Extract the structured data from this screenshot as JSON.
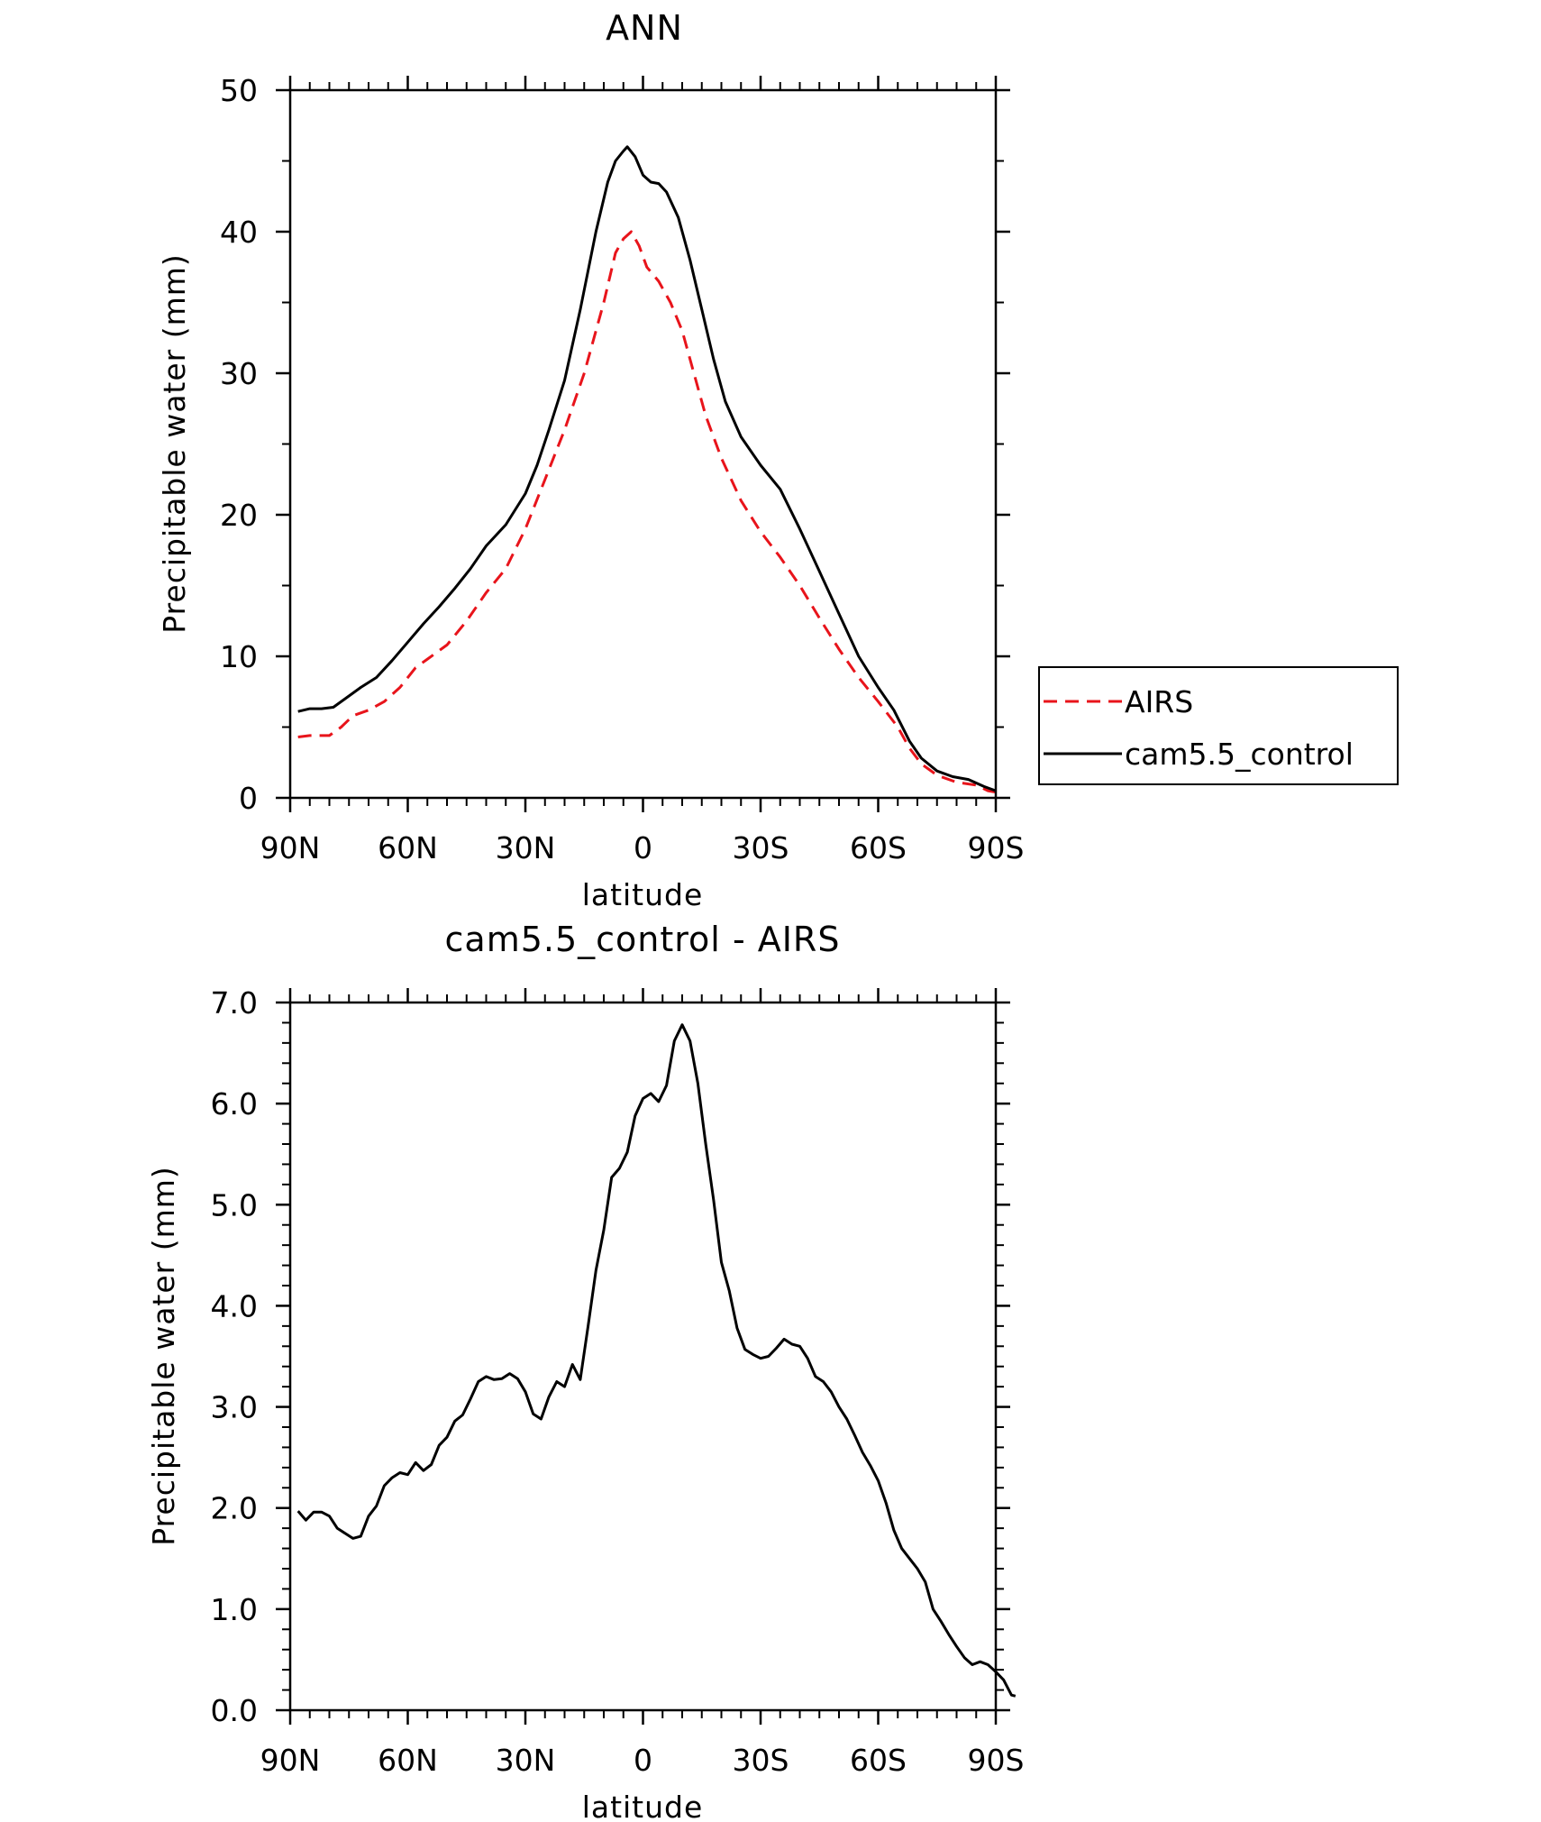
{
  "chart_data": [
    {
      "type": "line",
      "title": "ANN",
      "xlabel": "latitude",
      "ylabel": "Precipitable water (mm)",
      "xlim": [
        90,
        -90
      ],
      "ylim": [
        0,
        50
      ],
      "x_tick_values": [
        90,
        60,
        30,
        0,
        -30,
        -60,
        -90
      ],
      "x_tick_labels": [
        "90N",
        "60N",
        "30N",
        "0",
        "30S",
        "60S",
        "90S"
      ],
      "y_tick_values": [
        0,
        10,
        20,
        30,
        40,
        50
      ],
      "y_tick_labels": [
        "0",
        "10",
        "20",
        "30",
        "40",
        "50"
      ],
      "legend_position": "right",
      "series": [
        {
          "name": "AIRS",
          "color": "#e8141b",
          "dash": "dashed",
          "points": [
            [
              88,
              4.3
            ],
            [
              85,
              4.4
            ],
            [
              80,
              4.4
            ],
            [
              77,
              5.0
            ],
            [
              74,
              5.8
            ],
            [
              70,
              6.2
            ],
            [
              66,
              6.8
            ],
            [
              62,
              7.8
            ],
            [
              58,
              9.2
            ],
            [
              55,
              9.8
            ],
            [
              50,
              10.8
            ],
            [
              45,
              12.5
            ],
            [
              40,
              14.5
            ],
            [
              35,
              16.2
            ],
            [
              30,
              19.0
            ],
            [
              25,
              22.5
            ],
            [
              20,
              26.0
            ],
            [
              15,
              30.0
            ],
            [
              10,
              35.0
            ],
            [
              7,
              38.5
            ],
            [
              5,
              39.5
            ],
            [
              3,
              40.0
            ],
            [
              1,
              39.0
            ],
            [
              -1,
              37.5
            ],
            [
              -4,
              36.5
            ],
            [
              -7,
              35.0
            ],
            [
              -10,
              33.0
            ],
            [
              -13,
              30.0
            ],
            [
              -16,
              27.0
            ],
            [
              -20,
              24.0
            ],
            [
              -25,
              21.0
            ],
            [
              -30,
              18.8
            ],
            [
              -35,
              17.0
            ],
            [
              -40,
              15.0
            ],
            [
              -45,
              12.7
            ],
            [
              -50,
              10.5
            ],
            [
              -55,
              8.5
            ],
            [
              -60,
              6.8
            ],
            [
              -65,
              5.0
            ],
            [
              -68,
              3.5
            ],
            [
              -71,
              2.4
            ],
            [
              -75,
              1.6
            ],
            [
              -80,
              1.1
            ],
            [
              -85,
              0.9
            ],
            [
              -88,
              0.5
            ],
            [
              -90,
              0.4
            ]
          ]
        },
        {
          "name": "cam5.5_control",
          "color": "#000000",
          "dash": "solid",
          "points": [
            [
              88,
              6.1
            ],
            [
              85,
              6.3
            ],
            [
              82,
              6.3
            ],
            [
              79,
              6.4
            ],
            [
              76,
              7.0
            ],
            [
              72,
              7.8
            ],
            [
              68,
              8.5
            ],
            [
              64,
              9.7
            ],
            [
              60,
              11.0
            ],
            [
              56,
              12.3
            ],
            [
              52,
              13.5
            ],
            [
              48,
              14.8
            ],
            [
              44,
              16.2
            ],
            [
              40,
              17.8
            ],
            [
              35,
              19.3
            ],
            [
              30,
              21.5
            ],
            [
              27,
              23.5
            ],
            [
              24,
              26.0
            ],
            [
              20,
              29.5
            ],
            [
              16,
              34.5
            ],
            [
              12,
              40.0
            ],
            [
              9,
              43.5
            ],
            [
              7,
              45.0
            ],
            [
              5,
              45.7
            ],
            [
              4,
              46.0
            ],
            [
              2,
              45.3
            ],
            [
              0,
              44.0
            ],
            [
              -2,
              43.5
            ],
            [
              -4,
              43.4
            ],
            [
              -6,
              42.8
            ],
            [
              -9,
              41.0
            ],
            [
              -12,
              38.0
            ],
            [
              -15,
              34.5
            ],
            [
              -18,
              31.0
            ],
            [
              -21,
              28.0
            ],
            [
              -25,
              25.5
            ],
            [
              -30,
              23.5
            ],
            [
              -35,
              21.8
            ],
            [
              -40,
              19.0
            ],
            [
              -45,
              16.0
            ],
            [
              -50,
              13.0
            ],
            [
              -55,
              10.0
            ],
            [
              -60,
              7.8
            ],
            [
              -64,
              6.2
            ],
            [
              -68,
              4.0
            ],
            [
              -71,
              2.8
            ],
            [
              -75,
              1.9
            ],
            [
              -79,
              1.5
            ],
            [
              -83,
              1.3
            ],
            [
              -87,
              0.8
            ],
            [
              -90,
              0.5
            ]
          ]
        }
      ]
    },
    {
      "type": "line",
      "title": "cam5.5_control - AIRS",
      "xlabel": "latitude",
      "ylabel": "Precipitable water (mm)",
      "xlim": [
        90,
        -90
      ],
      "ylim": [
        0,
        7
      ],
      "x_tick_values": [
        90,
        60,
        30,
        0,
        -30,
        -60,
        -90
      ],
      "x_tick_labels": [
        "90N",
        "60N",
        "30N",
        "0",
        "30S",
        "60S",
        "90S"
      ],
      "y_tick_values": [
        0,
        1,
        2,
        3,
        4,
        5,
        6,
        7
      ],
      "y_tick_labels": [
        "0.0",
        "1.0",
        "2.0",
        "3.0",
        "4.0",
        "5.0",
        "6.0",
        "7.0"
      ],
      "series": [
        {
          "color": "#000000",
          "dash": "solid",
          "points": [
            [
              88,
              1.97
            ],
            [
              86,
              1.88
            ],
            [
              84,
              1.96
            ],
            [
              82,
              1.96
            ],
            [
              80,
              1.92
            ],
            [
              78,
              1.8
            ],
            [
              76,
              1.75
            ],
            [
              74,
              1.7
            ],
            [
              72,
              1.72
            ],
            [
              70,
              1.92
            ],
            [
              68,
              2.02
            ],
            [
              66,
              2.22
            ],
            [
              64,
              2.3
            ],
            [
              62,
              2.35
            ],
            [
              60,
              2.33
            ],
            [
              58,
              2.45
            ],
            [
              56,
              2.37
            ],
            [
              54,
              2.43
            ],
            [
              52,
              2.62
            ],
            [
              50,
              2.7
            ],
            [
              48,
              2.86
            ],
            [
              46,
              2.92
            ],
            [
              44,
              3.08
            ],
            [
              42,
              3.25
            ],
            [
              40,
              3.3
            ],
            [
              38,
              3.27
            ],
            [
              36,
              3.28
            ],
            [
              34,
              3.33
            ],
            [
              32,
              3.28
            ],
            [
              30,
              3.15
            ],
            [
              28,
              2.93
            ],
            [
              26,
              2.88
            ],
            [
              24,
              3.1
            ],
            [
              22,
              3.25
            ],
            [
              20,
              3.2
            ],
            [
              18,
              3.42
            ],
            [
              16,
              3.27
            ],
            [
              14,
              3.8
            ],
            [
              12,
              4.35
            ],
            [
              10,
              4.75
            ],
            [
              8,
              5.27
            ],
            [
              6,
              5.36
            ],
            [
              4,
              5.52
            ],
            [
              2,
              5.88
            ],
            [
              0,
              6.05
            ],
            [
              -2,
              6.1
            ],
            [
              -4,
              6.02
            ],
            [
              -6,
              6.18
            ],
            [
              -8,
              6.62
            ],
            [
              -10,
              6.78
            ],
            [
              -12,
              6.62
            ],
            [
              -14,
              6.2
            ],
            [
              -16,
              5.6
            ],
            [
              -18,
              5.05
            ],
            [
              -20,
              4.43
            ],
            [
              -22,
              4.15
            ],
            [
              -24,
              3.78
            ],
            [
              -26,
              3.57
            ],
            [
              -28,
              3.52
            ],
            [
              -30,
              3.48
            ],
            [
              -32,
              3.5
            ],
            [
              -34,
              3.58
            ],
            [
              -36,
              3.67
            ],
            [
              -38,
              3.62
            ],
            [
              -40,
              3.6
            ],
            [
              -42,
              3.48
            ],
            [
              -44,
              3.3
            ],
            [
              -46,
              3.25
            ],
            [
              -48,
              3.15
            ],
            [
              -50,
              3.0
            ],
            [
              -52,
              2.88
            ],
            [
              -54,
              2.72
            ],
            [
              -56,
              2.55
            ],
            [
              -58,
              2.42
            ],
            [
              -60,
              2.27
            ],
            [
              -62,
              2.05
            ],
            [
              -64,
              1.78
            ],
            [
              -66,
              1.6
            ],
            [
              -68,
              1.5
            ],
            [
              -70,
              1.4
            ],
            [
              -72,
              1.27
            ],
            [
              -74,
              1.0
            ],
            [
              -76,
              0.88
            ],
            [
              -78,
              0.75
            ],
            [
              -80,
              0.63
            ],
            [
              -82,
              0.52
            ],
            [
              -84,
              0.45
            ],
            [
              -86,
              0.48
            ],
            [
              -88,
              0.45
            ],
            [
              -90,
              0.38
            ],
            [
              -92,
              0.3
            ],
            [
              -94,
              0.15
            ],
            [
              -95,
              0.14
            ]
          ]
        }
      ]
    }
  ],
  "legend": {
    "items": [
      {
        "label": "AIRS",
        "color": "#e8141b",
        "dash": "dashed"
      },
      {
        "label": "cam5.5_control",
        "color": "#000000",
        "dash": "solid"
      }
    ]
  }
}
